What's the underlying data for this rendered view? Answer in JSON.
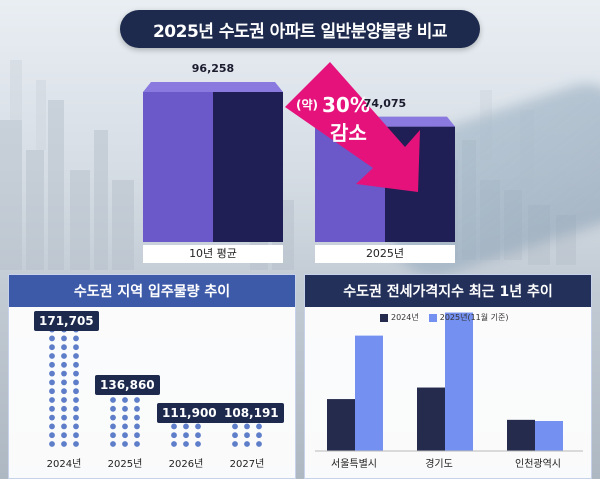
{
  "header": {
    "title": "2025년 수도권 아파트 일반분양물량 비교"
  },
  "callout": {
    "prefix": "(약)",
    "percent": "30%",
    "text": "감소"
  },
  "colors": {
    "navy": "#1d2a4d",
    "bar_front": "#6b58c9",
    "bar_side": "#1f1f55",
    "arrow": "#e6127c",
    "dot": "#5f7ec9",
    "series_2024": "#242b4d",
    "series_2025": "#7490f0"
  },
  "chart_data": [
    {
      "type": "bar",
      "categories": [
        "10년 평균",
        "2025년"
      ],
      "values": [
        96258,
        74075
      ],
      "value_labels": [
        "96,258",
        "74,075"
      ],
      "annotation": "(약) 30% 감소"
    },
    {
      "type": "bar",
      "title": "수도권 지역 입주물량 추이",
      "categories": [
        "2024년",
        "2025년",
        "2026년",
        "2027년"
      ],
      "values": [
        171705,
        136860,
        111900,
        108191
      ],
      "value_labels": [
        "171,705",
        "136,860",
        "111,900",
        "108,191"
      ],
      "dot_rows": [
        14,
        7,
        3,
        3
      ]
    },
    {
      "type": "bar",
      "title": "수도권 전세가격지수 최근 1년 추이",
      "categories": [
        "서울특별시",
        "경기도",
        "인천광역시"
      ],
      "series": [
        {
          "name": "2024년",
          "values": [
            0.45,
            0.55,
            0.27
          ]
        },
        {
          "name": "2025년(11월 기준)",
          "values": [
            1.0,
            1.2,
            0.26
          ]
        }
      ],
      "ylim": [
        0,
        1.3
      ]
    }
  ]
}
